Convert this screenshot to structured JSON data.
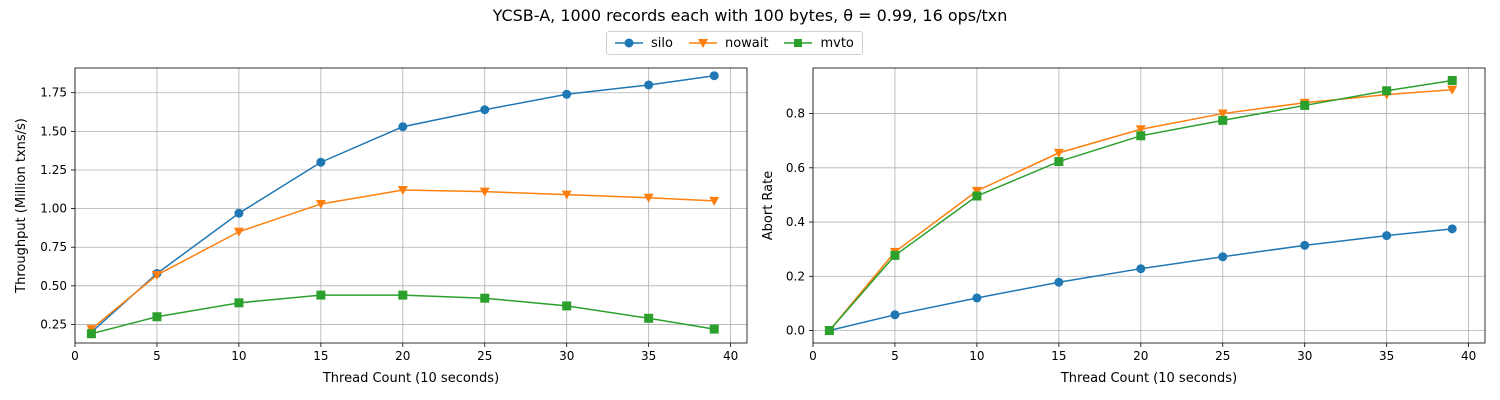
{
  "figure": {
    "suptitle": "YCSB-A, 1000 records each with 100 bytes, θ = 0.99, 16 ops/txn"
  },
  "legend": {
    "placement": "top-center",
    "entries": [
      {
        "name": "silo",
        "color": "#1f77b4",
        "marker": "circle"
      },
      {
        "name": "nowait",
        "color": "#ff7f0e",
        "marker": "triangle-down"
      },
      {
        "name": "mvto",
        "color": "#2ca02c",
        "marker": "square"
      }
    ]
  },
  "chart_data": [
    {
      "type": "line",
      "title": "",
      "xlabel": "Thread Count (10 seconds)",
      "ylabel": "Throughput (Million txns/s)",
      "x": [
        1,
        5,
        10,
        15,
        20,
        25,
        30,
        35,
        39
      ],
      "xlim": [
        0,
        41
      ],
      "ylim": [
        0.13,
        1.91
      ],
      "xticks": [
        0,
        5,
        10,
        15,
        20,
        25,
        30,
        35,
        40
      ],
      "yticks": [
        0.25,
        0.5,
        0.75,
        1.0,
        1.25,
        1.5,
        1.75
      ],
      "ytick_labels": [
        "0.25",
        "0.50",
        "0.75",
        "1.00",
        "1.25",
        "1.50",
        "1.75"
      ],
      "grid": true,
      "series": [
        {
          "name": "silo",
          "color": "#1f77b4",
          "marker": "circle",
          "values": [
            0.2,
            0.58,
            0.97,
            1.3,
            1.53,
            1.64,
            1.74,
            1.8,
            1.86
          ]
        },
        {
          "name": "nowait",
          "color": "#ff7f0e",
          "marker": "triangle-down",
          "values": [
            0.22,
            0.57,
            0.85,
            1.03,
            1.12,
            1.11,
            1.09,
            1.07,
            1.05
          ]
        },
        {
          "name": "mvto",
          "color": "#2ca02c",
          "marker": "square",
          "values": [
            0.19,
            0.3,
            0.39,
            0.44,
            0.44,
            0.42,
            0.37,
            0.29,
            0.22
          ]
        }
      ]
    },
    {
      "type": "line",
      "title": "",
      "xlabel": "Thread Count (10 seconds)",
      "ylabel": "Abort Rate",
      "x": [
        1,
        5,
        10,
        15,
        20,
        25,
        30,
        35,
        39
      ],
      "xlim": [
        0,
        41
      ],
      "ylim": [
        -0.046,
        0.968
      ],
      "xticks": [
        0,
        5,
        10,
        15,
        20,
        25,
        30,
        35,
        40
      ],
      "yticks": [
        0.0,
        0.2,
        0.4,
        0.6,
        0.8
      ],
      "ytick_labels": [
        "0.0",
        "0.2",
        "0.4",
        "0.6",
        "0.8"
      ],
      "grid": true,
      "series": [
        {
          "name": "silo",
          "color": "#1f77b4",
          "marker": "circle",
          "values": [
            0.0,
            0.058,
            0.12,
            0.178,
            0.228,
            0.272,
            0.314,
            0.35,
            0.375
          ]
        },
        {
          "name": "nowait",
          "color": "#ff7f0e",
          "marker": "triangle-down",
          "values": [
            0.0,
            0.29,
            0.515,
            0.655,
            0.742,
            0.8,
            0.84,
            0.87,
            0.888
          ]
        },
        {
          "name": "mvto",
          "color": "#2ca02c",
          "marker": "square",
          "values": [
            0.0,
            0.277,
            0.496,
            0.623,
            0.718,
            0.775,
            0.83,
            0.884,
            0.922
          ]
        }
      ]
    }
  ]
}
